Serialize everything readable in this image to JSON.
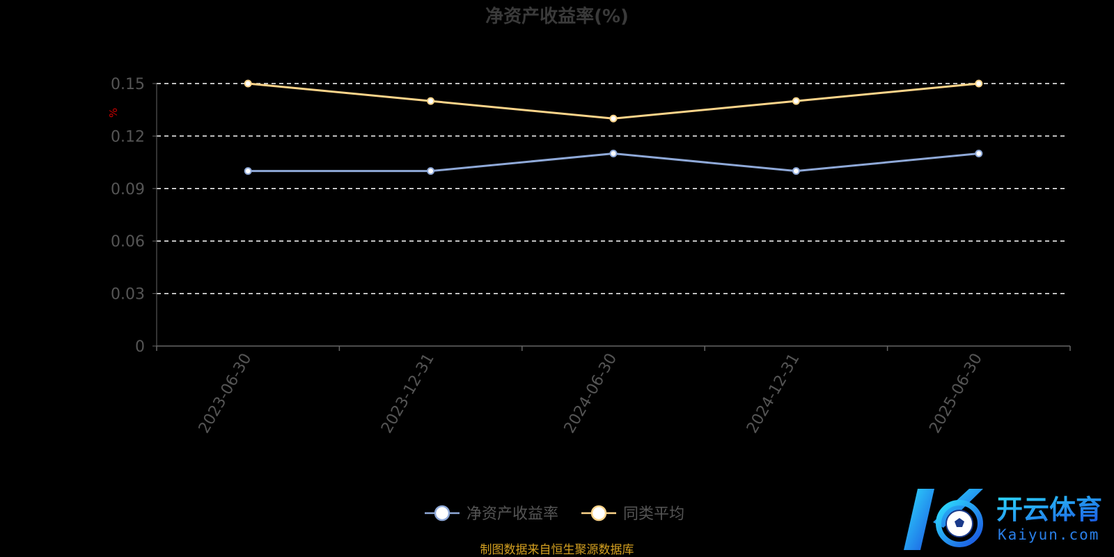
{
  "chart_data": {
    "type": "line",
    "title": "净资产收益率(%)",
    "ylabel": "%",
    "categories": [
      "2023-06-30",
      "2023-12-31",
      "2024-06-30",
      "2024-12-31",
      "2025-06-30"
    ],
    "series": [
      {
        "name": "净资产收益率",
        "color": "#8fa9d8",
        "values": [
          0.1,
          0.1,
          0.11,
          0.1,
          0.11
        ]
      },
      {
        "name": "同类平均",
        "color": "#fcd48a",
        "values": [
          0.15,
          0.14,
          0.13,
          0.14,
          0.15
        ]
      }
    ],
    "ylim": [
      0,
      0.15
    ],
    "yticks": [
      "0",
      "0.03",
      "0.06",
      "0.09",
      "0.12",
      "0.15"
    ],
    "grid": true,
    "legend_position": "bottom-center"
  },
  "source": "制图数据来自恒生聚源数据库",
  "watermark": {
    "cn": "开云体育",
    "en": "Kaiyun.com"
  }
}
